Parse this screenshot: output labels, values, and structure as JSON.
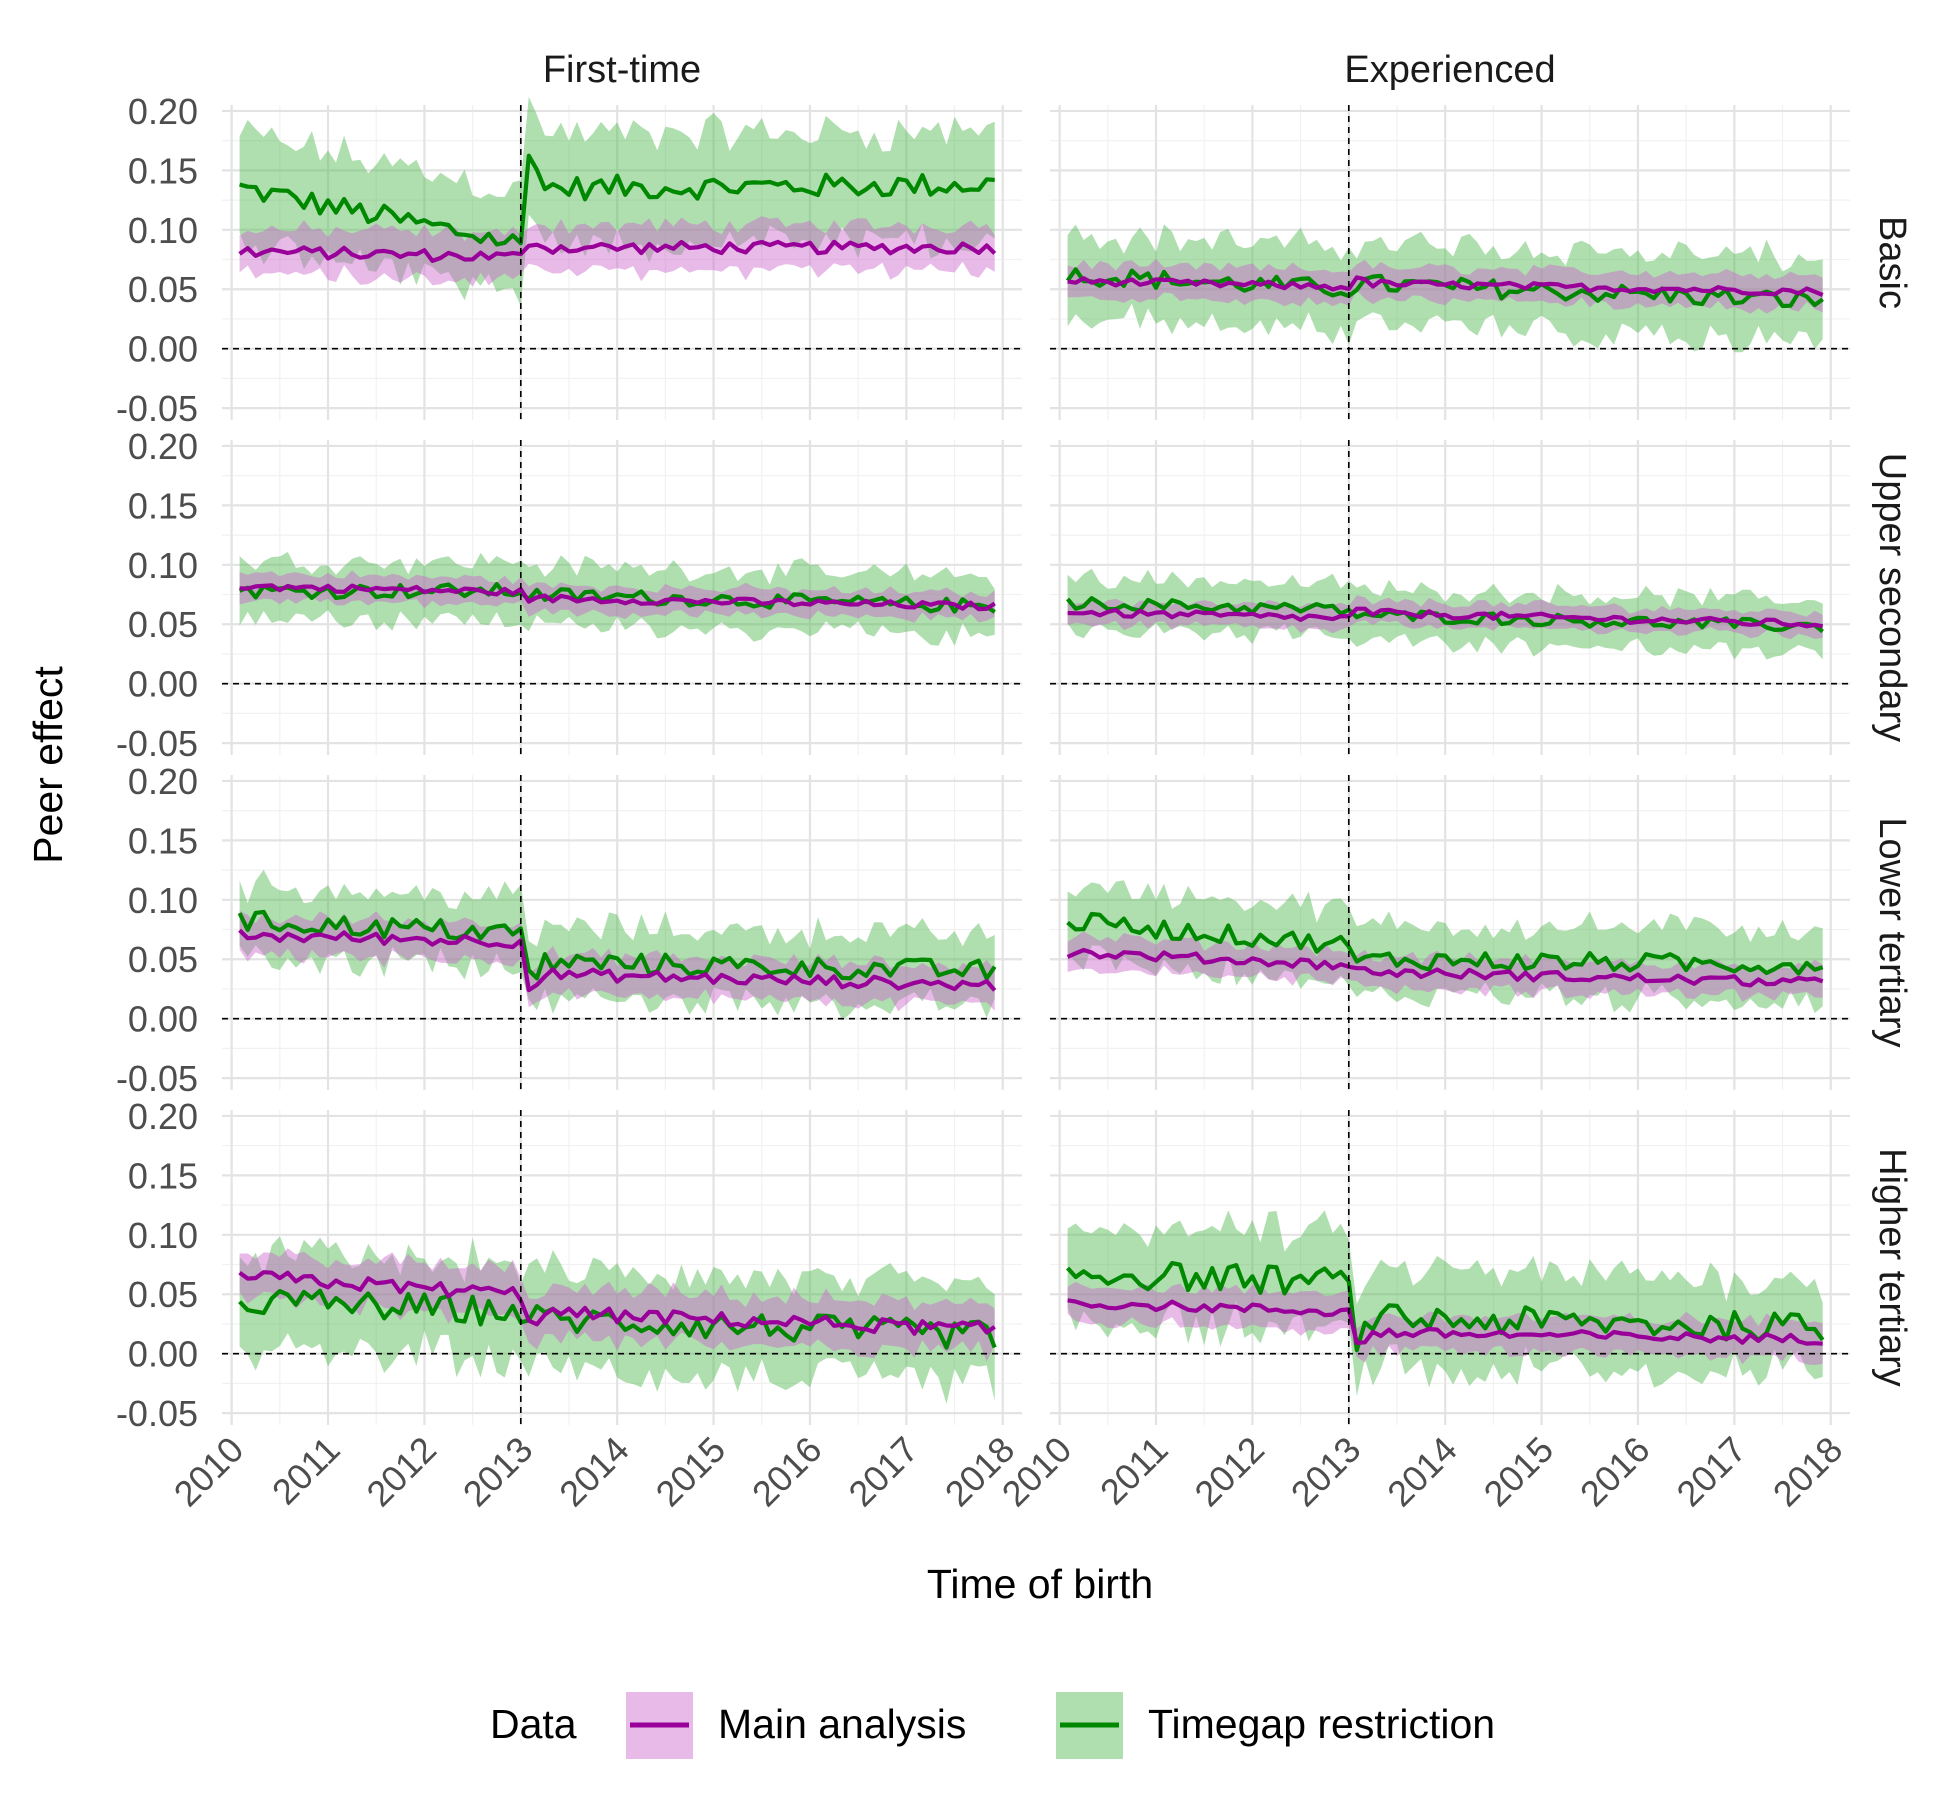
{
  "chart_data": {
    "type": "line",
    "xlabel": "Time of birth",
    "ylabel": "Peer effect",
    "xlim": [
      2009.9,
      2018.2
    ],
    "ylim": [
      -0.06,
      0.205
    ],
    "x_ticks": [
      2010,
      2011,
      2012,
      2013,
      2014,
      2015,
      2016,
      2017,
      2018
    ],
    "y_ticks": [
      -0.05,
      0.0,
      0.05,
      0.1,
      0.15,
      0.2
    ],
    "y_tick_labels": [
      "-0.05",
      "0.00",
      "0.05",
      "0.10",
      "0.15",
      "0.20"
    ],
    "reference_vline_x": 2013,
    "reference_hline_y": 0,
    "columns": [
      "First-time",
      "Experienced"
    ],
    "rows": [
      "Basic",
      "Upper secondary",
      "Lower tertiary",
      "Higher tertiary"
    ],
    "grid": true,
    "legend": {
      "title": "Data",
      "position": "bottom",
      "entries": [
        "Main analysis",
        "Timegap restriction"
      ]
    },
    "series_style": {
      "main": {
        "line": "#990099",
        "band": "#cc66cc"
      },
      "timegap": {
        "line": "#008800",
        "band": "#4db84d"
      }
    },
    "x_start": 2010.083,
    "x_end": 2017.917,
    "panels": [
      {
        "row": 0,
        "col": 0,
        "main": {
          "pre": [
            0.082,
            0.077
          ],
          "post": [
            0.085,
            0.085
          ],
          "jump": 0.01,
          "noise": 0.005,
          "band": 0.019
        },
        "timegap": {
          "pre": [
            0.135,
            0.088
          ],
          "post": [
            0.135,
            0.138
          ],
          "jump": 0.05,
          "noise": 0.01,
          "band": 0.045
        }
      },
      {
        "row": 0,
        "col": 1,
        "main": {
          "pre": [
            0.057,
            0.052
          ],
          "post": [
            0.055,
            0.048
          ],
          "jump": 0.005,
          "noise": 0.003,
          "band": 0.014
        },
        "timegap": {
          "pre": [
            0.062,
            0.05
          ],
          "post": [
            0.055,
            0.04
          ],
          "jump": 0.0,
          "noise": 0.008,
          "band": 0.035
        }
      },
      {
        "row": 1,
        "col": 0,
        "main": {
          "pre": [
            0.082,
            0.077
          ],
          "post": [
            0.072,
            0.065
          ],
          "jump": 0.0,
          "noise": 0.003,
          "band": 0.011
        },
        "timegap": {
          "pre": [
            0.078,
            0.078
          ],
          "post": [
            0.075,
            0.065
          ],
          "jump": 0.0,
          "noise": 0.006,
          "band": 0.025
        }
      },
      {
        "row": 1,
        "col": 1,
        "main": {
          "pre": [
            0.06,
            0.055
          ],
          "post": [
            0.06,
            0.05
          ],
          "jump": 0.003,
          "noise": 0.003,
          "band": 0.01
        },
        "timegap": {
          "pre": [
            0.068,
            0.062
          ],
          "post": [
            0.058,
            0.048
          ],
          "jump": 0.0,
          "noise": 0.005,
          "band": 0.022
        }
      },
      {
        "row": 2,
        "col": 0,
        "main": {
          "pre": [
            0.07,
            0.065
          ],
          "post": [
            0.038,
            0.028
          ],
          "jump": -0.018,
          "noise": 0.005,
          "band": 0.016
        },
        "timegap": {
          "pre": [
            0.082,
            0.072
          ],
          "post": [
            0.048,
            0.04
          ],
          "jump": -0.02,
          "noise": 0.009,
          "band": 0.03
        }
      },
      {
        "row": 2,
        "col": 1,
        "main": {
          "pre": [
            0.056,
            0.045
          ],
          "post": [
            0.04,
            0.03
          ],
          "jump": 0.0,
          "noise": 0.004,
          "band": 0.013
        },
        "timegap": {
          "pre": [
            0.082,
            0.062
          ],
          "post": [
            0.05,
            0.045
          ],
          "jump": -0.005,
          "noise": 0.008,
          "band": 0.03
        }
      },
      {
        "row": 3,
        "col": 0,
        "main": {
          "pre": [
            0.065,
            0.05
          ],
          "post": [
            0.035,
            0.02
          ],
          "jump": -0.01,
          "noise": 0.006,
          "band": 0.02
        },
        "timegap": {
          "pre": [
            0.045,
            0.035
          ],
          "post": [
            0.03,
            0.015
          ],
          "jump": 0.0,
          "noise": 0.012,
          "band": 0.04
        }
      },
      {
        "row": 3,
        "col": 1,
        "main": {
          "pre": [
            0.043,
            0.035
          ],
          "post": [
            0.018,
            0.012
          ],
          "jump": -0.015,
          "noise": 0.004,
          "band": 0.015
        },
        "timegap": {
          "pre": [
            0.068,
            0.06
          ],
          "post": [
            0.03,
            0.022
          ],
          "jump": -0.03,
          "noise": 0.012,
          "band": 0.04
        }
      }
    ]
  }
}
